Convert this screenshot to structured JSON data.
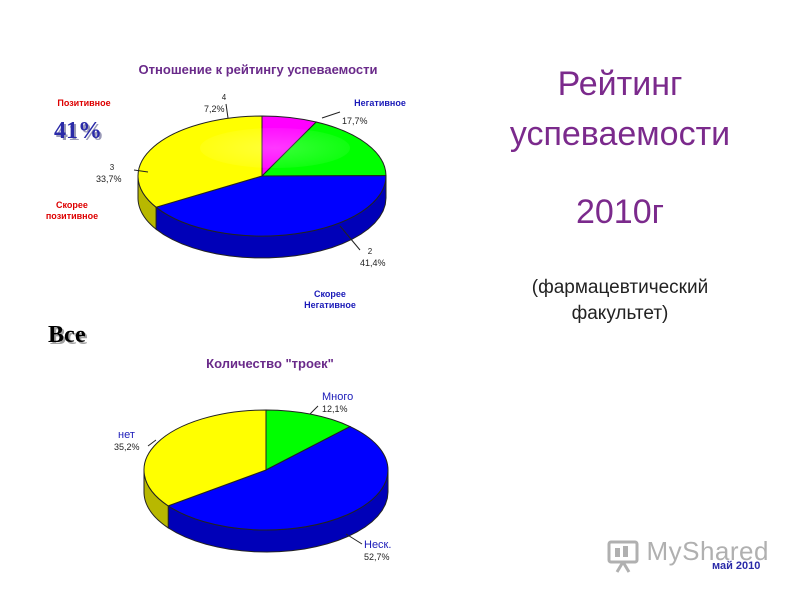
{
  "chart_data": [
    {
      "type": "pie",
      "title": "Отношение к рейтингу успеваемости",
      "slices": [
        {
          "num": "4",
          "label": "Позитивное",
          "percent_label": "7,2%",
          "value": 7.2,
          "color": "#ff00ff"
        },
        {
          "num": "",
          "label": "Негативное",
          "percent_label": "17,7%",
          "value": 17.7,
          "color": "#00ff00"
        },
        {
          "num": "2",
          "label": "Скорее Негативное",
          "percent_label": "41,4%",
          "value": 41.4,
          "color": "#0000ff"
        },
        {
          "num": "3",
          "label": "Скорее позитивное",
          "percent_label": "33,7%",
          "value": 33.7,
          "color": "#ffff00"
        }
      ],
      "label_colors": {
        "Позитивное": "#dd0000",
        "Негативное": "#1a1ab8",
        "Скорее Негативное": "#1a1ab8",
        "Скорее позитивное": "#dd0000"
      }
    },
    {
      "type": "pie",
      "title": "Количество \"троек\"",
      "slices": [
        {
          "label": "Много",
          "percent_label": "12,1%",
          "value": 12.1,
          "color": "#00ff00"
        },
        {
          "label": "Неск.",
          "percent_label": "52,7%",
          "value": 52.7,
          "color": "#0000ff"
        },
        {
          "label": "нет",
          "percent_label": "35,2%",
          "value": 35.2,
          "color": "#ffff00"
        }
      ],
      "label_color": "#1a1ab8"
    }
  ],
  "annotations": {
    "big_percent": "41%",
    "all_label": "Все"
  },
  "heading": {
    "line1": "Рейтинг",
    "line2": "успеваемости",
    "year": "2010г",
    "sub1": "(фармацевтический",
    "sub2": "факультет)"
  },
  "footer": {
    "watermark": "MyShared",
    "date": "май 2010"
  }
}
